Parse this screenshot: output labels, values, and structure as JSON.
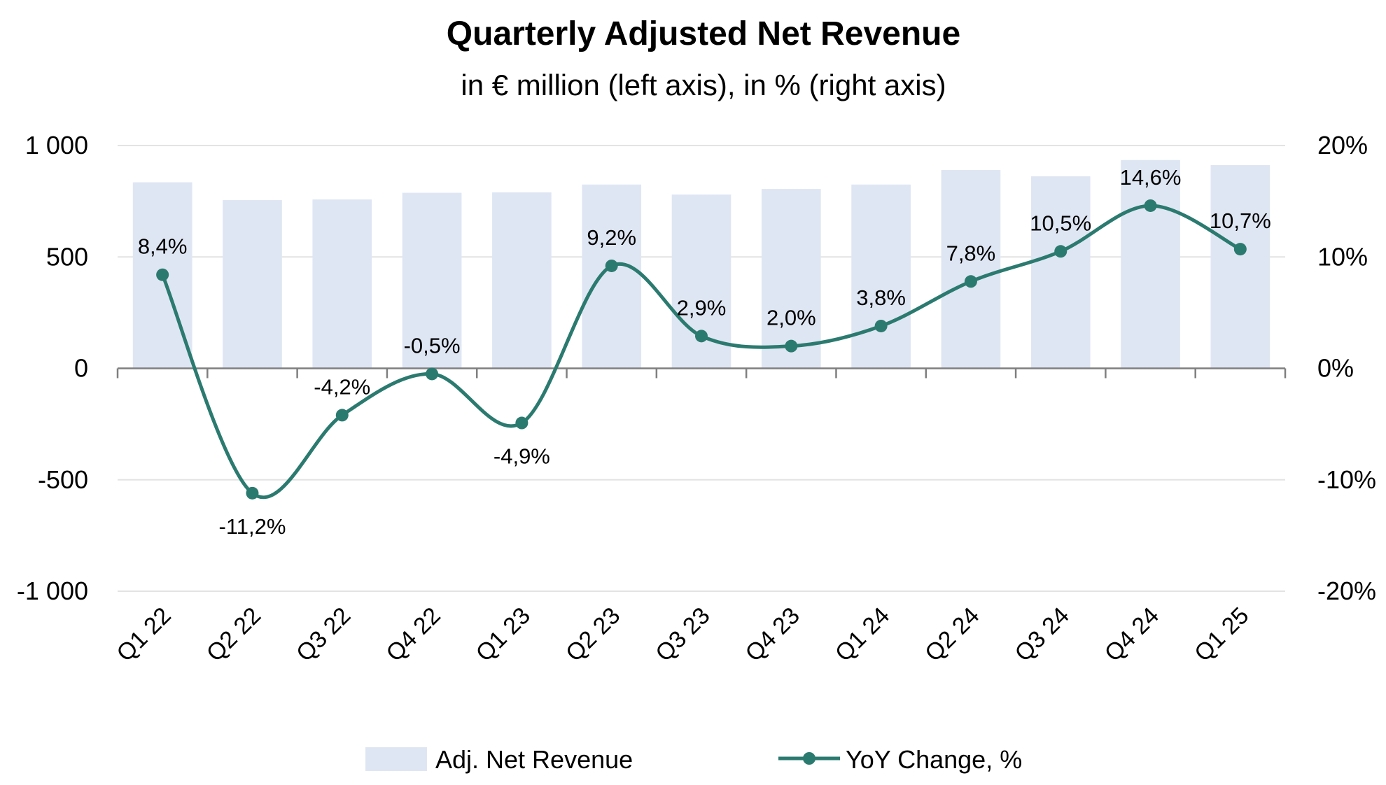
{
  "chart_data": {
    "type": "bar",
    "title": "Quarterly Adjusted Net Revenue",
    "subtitle": "in € million (left axis), in % (right axis)",
    "categories": [
      "Q1 22",
      "Q2 22",
      "Q3 22",
      "Q4 22",
      "Q1 23",
      "Q2 23",
      "Q3 23",
      "Q4 23",
      "Q1 24",
      "Q2 24",
      "Q3 24",
      "Q4 24",
      "Q1 25"
    ],
    "series": [
      {
        "name": "Adj. Net Revenue",
        "type": "bar",
        "axis": "left",
        "color": "#dfe6f3",
        "values": [
          835,
          755,
          758,
          788,
          790,
          825,
          780,
          805,
          825,
          890,
          862,
          935,
          912
        ]
      },
      {
        "name": "YoY Change, %",
        "type": "line",
        "axis": "right",
        "color": "#2b7a70",
        "values": [
          8.4,
          -11.2,
          -4.2,
          -0.5,
          -4.9,
          9.2,
          2.9,
          2.0,
          3.8,
          7.8,
          10.5,
          14.6,
          10.7
        ],
        "labels": [
          "8,4%",
          "-11,2%",
          "-4,2%",
          "-0,5%",
          "-4,9%",
          "9,2%",
          "2,9%",
          "2,0%",
          "3,8%",
          "7,8%",
          "10,5%",
          "14,6%",
          "10,7%"
        ],
        "label_positions": [
          "above",
          "below",
          "above",
          "above",
          "below",
          "above",
          "above",
          "above",
          "above",
          "above",
          "above",
          "above",
          "above"
        ]
      }
    ],
    "left_axis": {
      "range": [
        -1000,
        1000
      ],
      "ticks": [
        1000,
        500,
        0,
        -500,
        -1000
      ],
      "tick_labels": [
        "1 000",
        "500",
        "0",
        "-500",
        "-1 000"
      ]
    },
    "right_axis": {
      "range": [
        -20,
        20
      ],
      "ticks": [
        20,
        10,
        0,
        -10,
        -20
      ],
      "tick_labels": [
        "20%",
        "10%",
        "0%",
        "-10%",
        "-20%"
      ]
    },
    "grid": true,
    "legend": {
      "placement": "bottom",
      "entries": [
        "Adj. Net Revenue",
        "YoY Change, %"
      ]
    }
  }
}
